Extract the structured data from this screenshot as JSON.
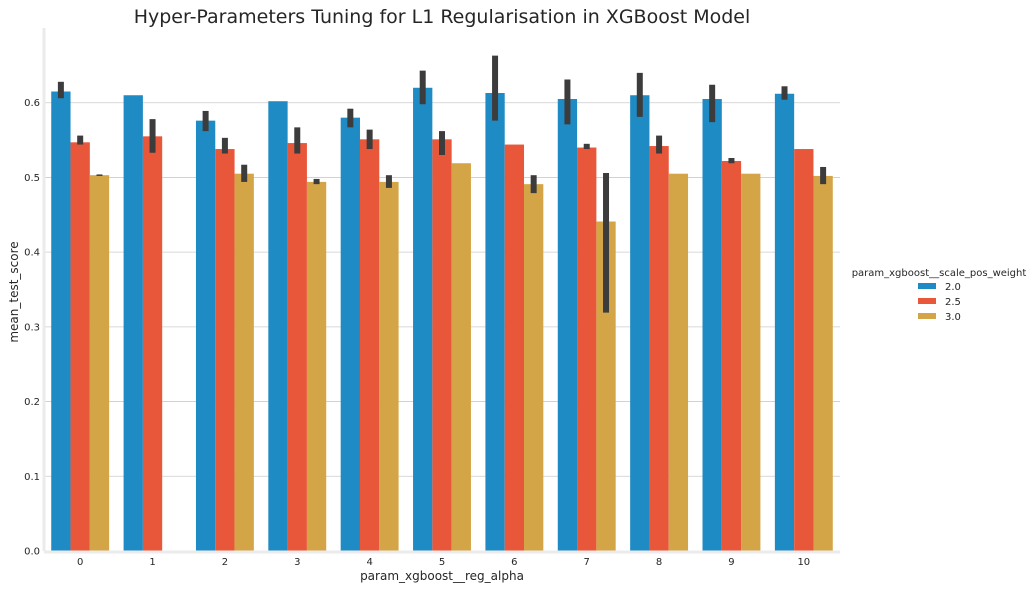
{
  "chart_data": {
    "type": "bar",
    "title": "Hyper-Parameters Tuning for L1 Regularisation in XGBoost Model",
    "xlabel": "param_xgboost__reg_alpha",
    "ylabel": "mean_test_score",
    "ylim": [
      0,
      0.7
    ],
    "yticks": [
      "0.0",
      "0.1",
      "0.2",
      "0.3",
      "0.4",
      "0.5",
      "0.6"
    ],
    "grid": "horizontal",
    "legend_title": "param_xgboost__scale_pos_weight",
    "legend_position": "right",
    "categories": [
      "0",
      "1",
      "2",
      "3",
      "4",
      "5",
      "6",
      "7",
      "8",
      "9",
      "10"
    ],
    "series": [
      {
        "name": "2.0",
        "color": "#1f8bc4",
        "values": [
          0.615,
          0.61,
          0.576,
          0.602,
          0.58,
          0.62,
          0.613,
          0.605,
          0.61,
          0.605,
          0.612
        ],
        "err_low": [
          0.606,
          null,
          0.562,
          null,
          0.567,
          0.598,
          0.576,
          0.571,
          0.581,
          0.574,
          0.604
        ],
        "err_high": [
          0.628,
          null,
          0.589,
          null,
          0.592,
          0.643,
          0.663,
          0.631,
          0.64,
          0.624,
          0.622
        ]
      },
      {
        "name": "2.5",
        "color": "#e8573a",
        "values": [
          0.547,
          0.555,
          0.538,
          0.546,
          0.551,
          0.551,
          0.544,
          0.54,
          0.542,
          0.522,
          0.538
        ],
        "err_low": [
          0.544,
          0.533,
          0.532,
          0.532,
          0.538,
          0.53,
          null,
          0.538,
          0.532,
          0.519,
          null
        ],
        "err_high": [
          0.556,
          0.578,
          0.553,
          0.567,
          0.564,
          0.562,
          null,
          0.545,
          0.556,
          0.526,
          null
        ]
      },
      {
        "name": "3.0",
        "color": "#d4a546",
        "values": [
          0.503,
          null,
          0.505,
          0.494,
          0.494,
          0.519,
          0.491,
          0.441,
          0.505,
          0.505,
          0.502
        ],
        "err_low": [
          0.502,
          null,
          0.494,
          0.491,
          0.486,
          null,
          0.479,
          0.319,
          null,
          null,
          0.491
        ],
        "err_high": [
          0.504,
          null,
          0.517,
          0.498,
          0.503,
          null,
          0.503,
          0.506,
          null,
          null,
          0.514
        ]
      }
    ]
  }
}
